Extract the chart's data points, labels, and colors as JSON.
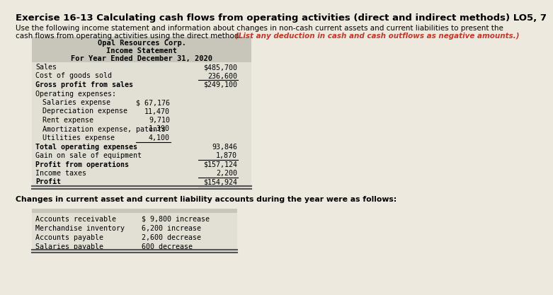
{
  "title": "Exercise 16-13 Calculating cash flows from operating activities (direct and indirect methods) LO5, 7",
  "intro_line1": "Use the following income statement and information about changes in non-cash current assets and current liabilities to present the",
  "intro_line2": "cash flows from operating activities using the direct method: ",
  "intro_highlight": "(List any deduction in cash and cash outflows as negative amounts.)",
  "company": "Opal Resources Corp.",
  "stmt_title": "Income Statement",
  "stmt_period": "For Year Ended December 31, 2020",
  "income_rows": [
    {
      "label": "Sales",
      "col1": "",
      "col2": "$485,700",
      "indent": 0,
      "ul_col1": false,
      "ul_col2": false,
      "dbl": false
    },
    {
      "label": "Cost of goods sold",
      "col1": "",
      "col2": "236,600",
      "indent": 0,
      "ul_col1": false,
      "ul_col2": true,
      "dbl": false
    },
    {
      "label": "Gross profit from sales",
      "col1": "",
      "col2": "$249,100",
      "indent": 0,
      "ul_col1": false,
      "ul_col2": false,
      "dbl": false
    },
    {
      "label": "Operating expenses:",
      "col1": "",
      "col2": "",
      "indent": 0,
      "ul_col1": false,
      "ul_col2": false,
      "dbl": false
    },
    {
      "label": "Salaries expense",
      "col1": "$ 67,176",
      "col2": "",
      "indent": 1,
      "ul_col1": false,
      "ul_col2": false,
      "dbl": false
    },
    {
      "label": "Depreciation expense",
      "col1": "11,470",
      "col2": "",
      "indent": 1,
      "ul_col1": false,
      "ul_col2": false,
      "dbl": false
    },
    {
      "label": "Rent expense",
      "col1": "9,710",
      "col2": "",
      "indent": 1,
      "ul_col1": false,
      "ul_col2": false,
      "dbl": false
    },
    {
      "label": "Amortization expense, patents",
      "col1": "1,390",
      "col2": "",
      "indent": 1,
      "ul_col1": false,
      "ul_col2": false,
      "dbl": false
    },
    {
      "label": "Utilities expense",
      "col1": "4,100",
      "col2": "",
      "indent": 1,
      "ul_col1": true,
      "ul_col2": false,
      "dbl": false
    },
    {
      "label": "Total operating expenses",
      "col1": "",
      "col2": "93,846",
      "indent": 0,
      "ul_col1": false,
      "ul_col2": false,
      "dbl": false
    },
    {
      "label": "Gain on sale of equipment",
      "col1": "",
      "col2": "1,870",
      "indent": 0,
      "ul_col1": false,
      "ul_col2": true,
      "dbl": false
    },
    {
      "label": "Profit from operations",
      "col1": "",
      "col2": "$157,124",
      "indent": 0,
      "ul_col1": false,
      "ul_col2": false,
      "dbl": false
    },
    {
      "label": "Income taxes",
      "col1": "",
      "col2": "2,200",
      "indent": 0,
      "ul_col1": false,
      "ul_col2": true,
      "dbl": false
    },
    {
      "label": "Profit",
      "col1": "",
      "col2": "$154,924",
      "indent": 0,
      "ul_col1": false,
      "ul_col2": false,
      "dbl": true
    }
  ],
  "changes_text": "Changes in current asset and current liability accounts during the year were as follows:",
  "changes_rows": [
    {
      "label": "Accounts receivable",
      "value": "$ 9,800 increase"
    },
    {
      "label": "Merchandise inventory",
      "value": "6,200 increase"
    },
    {
      "label": "Accounts payable",
      "value": "2,600 decrease"
    },
    {
      "label": "Salaries payable",
      "value": "600 decrease"
    }
  ],
  "bg_color": "#ede9df",
  "table_bg": "#e2dfd5",
  "header_bg": "#c8c5bb",
  "font_size": 7.2,
  "mono_font": "DejaVu Sans Mono"
}
